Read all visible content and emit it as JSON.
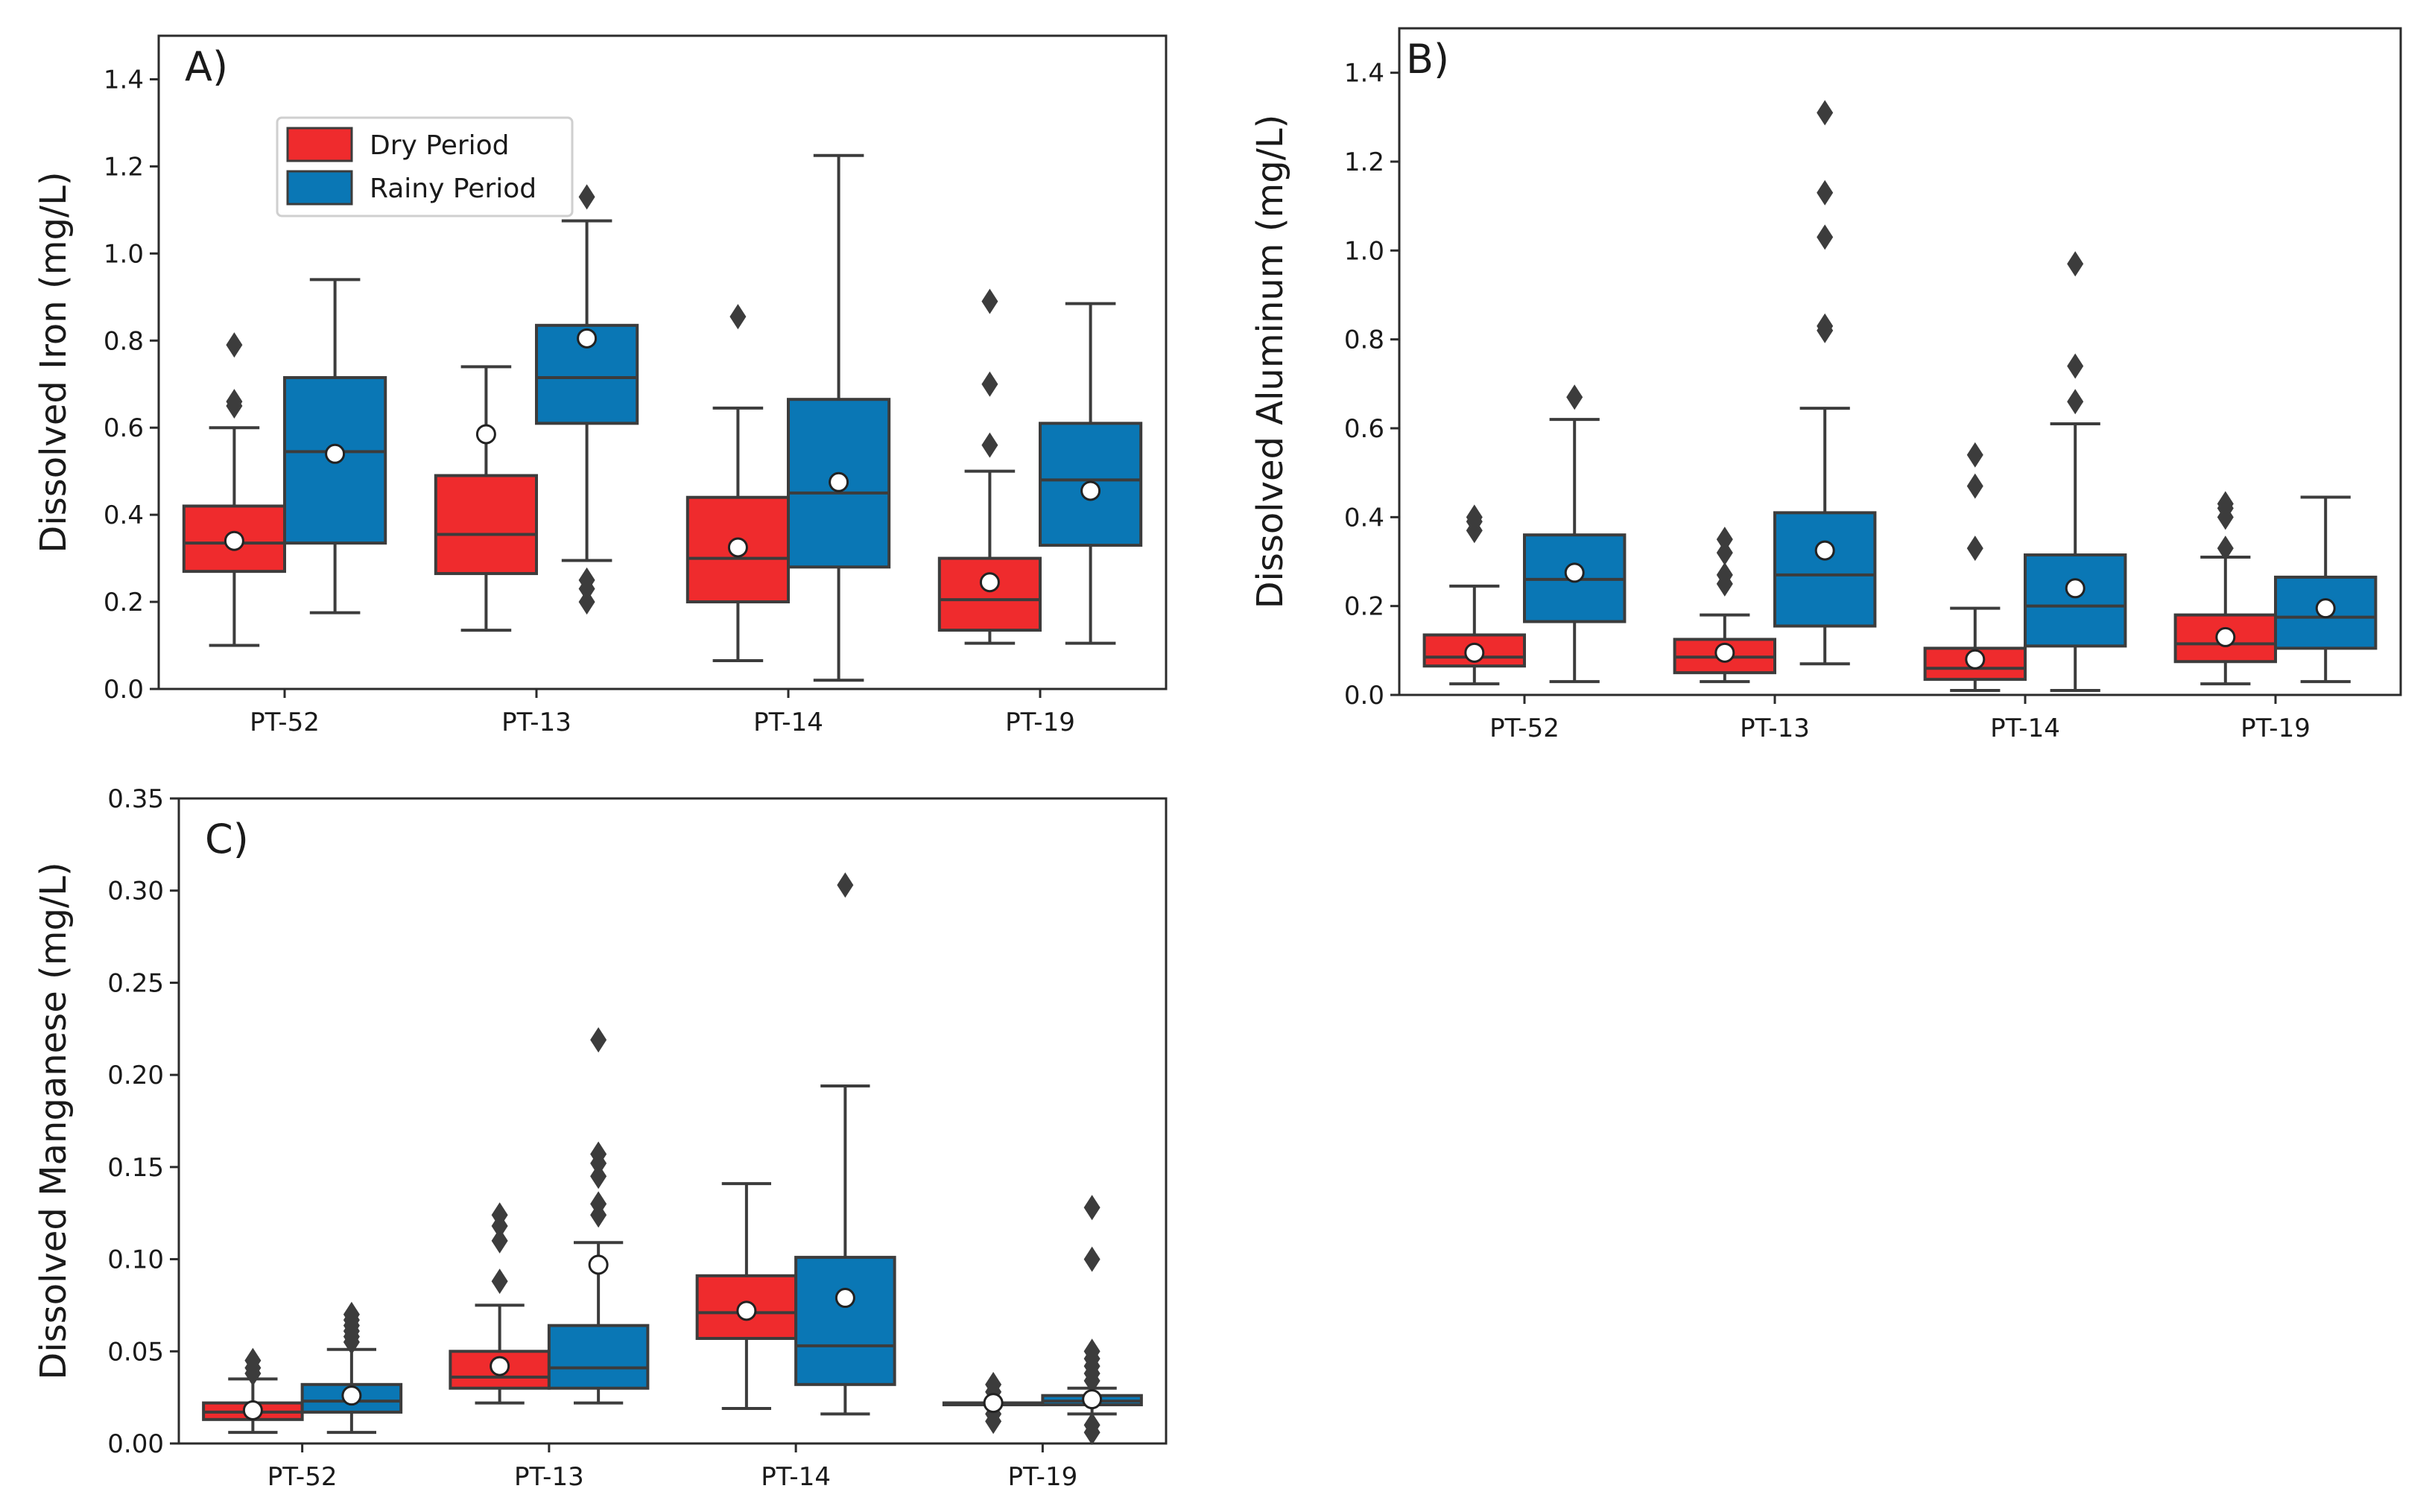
{
  "colors": {
    "dry": "#EF2B2D",
    "rainy": "#0A77B5",
    "lines": "#3c3c3c",
    "mean_marker": "#ffffff"
  },
  "legend": {
    "entries": [
      "Dry Period",
      "Rainy Period"
    ],
    "placement": "upper-left (panel A)"
  },
  "chart_data": [
    {
      "type": "box",
      "panel_label": "A)",
      "title": "",
      "xlabel": "",
      "ylabel": "Dissolved Iron (mg/L)",
      "ylim": [
        0.0,
        1.5
      ],
      "yticks": [
        0.0,
        0.2,
        0.4,
        0.6,
        0.8,
        1.0,
        1.2,
        1.4
      ],
      "ytick_labels": [
        "0.0",
        "0.2",
        "0.4",
        "0.6",
        "0.8",
        "1.0",
        "1.2",
        "1.4"
      ],
      "categories": [
        "PT-52",
        "PT-13",
        "PT-14",
        "PT-19"
      ],
      "series": [
        {
          "name": "Dry Period",
          "boxes": [
            {
              "whislo": 0.1,
              "q1": 0.27,
              "med": 0.335,
              "q3": 0.42,
              "whishi": 0.6,
              "mean": 0.34,
              "fliers": [
                0.65,
                0.66,
                0.79
              ]
            },
            {
              "whislo": 0.135,
              "q1": 0.265,
              "med": 0.355,
              "q3": 0.49,
              "whishi": 0.74,
              "mean": 0.585,
              "fliers": []
            },
            {
              "whislo": 0.065,
              "q1": 0.2,
              "med": 0.3,
              "q3": 0.44,
              "whishi": 0.645,
              "mean": 0.325,
              "fliers": [
                0.855
              ]
            },
            {
              "whislo": 0.105,
              "q1": 0.135,
              "med": 0.205,
              "q3": 0.3,
              "whishi": 0.5,
              "mean": 0.245,
              "fliers": [
                0.56,
                0.7,
                0.89
              ]
            }
          ]
        },
        {
          "name": "Rainy Period",
          "boxes": [
            {
              "whislo": 0.175,
              "q1": 0.335,
              "med": 0.545,
              "q3": 0.715,
              "whishi": 0.94,
              "mean": 0.54,
              "fliers": []
            },
            {
              "whislo": 0.295,
              "q1": 0.61,
              "med": 0.715,
              "q3": 0.835,
              "whishi": 1.075,
              "mean": 0.805,
              "fliers": [
                0.2,
                0.23,
                0.25,
                1.13
              ]
            },
            {
              "whislo": 0.02,
              "q1": 0.28,
              "med": 0.45,
              "q3": 0.665,
              "whishi": 1.225,
              "mean": 0.475,
              "fliers": []
            },
            {
              "whislo": 0.105,
              "q1": 0.33,
              "med": 0.48,
              "q3": 0.61,
              "whishi": 0.885,
              "mean": 0.455,
              "fliers": []
            }
          ]
        }
      ]
    },
    {
      "type": "box",
      "panel_label": "B)",
      "title": "",
      "xlabel": "",
      "ylabel": "Dissolved Aluminum (mg/L)",
      "ylim": [
        0.0,
        1.5
      ],
      "yticks": [
        0.0,
        0.2,
        0.4,
        0.6,
        0.8,
        1.0,
        1.2,
        1.4
      ],
      "ytick_labels": [
        "0.0",
        "0.2",
        "0.4",
        "0.6",
        "0.8",
        "1.0",
        "1.2",
        "1.4"
      ],
      "categories": [
        "PT-52",
        "PT-13",
        "PT-14",
        "PT-19"
      ],
      "series": [
        {
          "name": "Dry Period",
          "boxes": [
            {
              "whislo": 0.025,
              "q1": 0.065,
              "med": 0.085,
              "q3": 0.135,
              "whishi": 0.245,
              "mean": 0.095,
              "fliers": [
                0.37,
                0.39,
                0.4
              ]
            },
            {
              "whislo": 0.03,
              "q1": 0.05,
              "med": 0.085,
              "q3": 0.125,
              "whishi": 0.18,
              "mean": 0.095,
              "fliers": [
                0.25,
                0.27,
                0.32,
                0.35
              ]
            },
            {
              "whislo": 0.01,
              "q1": 0.035,
              "med": 0.06,
              "q3": 0.105,
              "whishi": 0.195,
              "mean": 0.08,
              "fliers": [
                0.33,
                0.47,
                0.54
              ]
            },
            {
              "whislo": 0.025,
              "q1": 0.075,
              "med": 0.115,
              "q3": 0.18,
              "whishi": 0.31,
              "mean": 0.13,
              "fliers": [
                0.33,
                0.4,
                0.42,
                0.43
              ]
            }
          ]
        },
        {
          "name": "Rainy Period",
          "boxes": [
            {
              "whislo": 0.03,
              "q1": 0.165,
              "med": 0.26,
              "q3": 0.36,
              "whishi": 0.62,
              "mean": 0.275,
              "fliers": [
                0.67
              ]
            },
            {
              "whislo": 0.07,
              "q1": 0.155,
              "med": 0.27,
              "q3": 0.41,
              "whishi": 0.645,
              "mean": 0.325,
              "fliers": [
                0.82,
                0.83,
                1.03,
                1.13,
                1.31
              ]
            },
            {
              "whislo": 0.01,
              "q1": 0.11,
              "med": 0.2,
              "q3": 0.315,
              "whishi": 0.61,
              "mean": 0.24,
              "fliers": [
                0.66,
                0.74,
                0.97
              ]
            },
            {
              "whislo": 0.03,
              "q1": 0.105,
              "med": 0.175,
              "q3": 0.265,
              "whishi": 0.445,
              "mean": 0.195,
              "fliers": []
            }
          ]
        }
      ]
    },
    {
      "type": "box",
      "panel_label": "C)",
      "title": "",
      "xlabel": "",
      "ylabel": "Dissolved Manganese (mg/L)",
      "ylim": [
        0.0,
        0.35
      ],
      "yticks": [
        0.0,
        0.05,
        0.1,
        0.15,
        0.2,
        0.25,
        0.3,
        0.35
      ],
      "ytick_labels": [
        "0.00",
        "0.05",
        "0.10",
        "0.15",
        "0.20",
        "0.25",
        "0.30",
        "0.35"
      ],
      "categories": [
        "PT-52",
        "PT-13",
        "PT-14",
        "PT-19"
      ],
      "series": [
        {
          "name": "Dry Period",
          "boxes": [
            {
              "whislo": 0.006,
              "q1": 0.013,
              "med": 0.017,
              "q3": 0.022,
              "whishi": 0.035,
              "mean": 0.018,
              "fliers": [
                0.038,
                0.041,
                0.045
              ]
            },
            {
              "whislo": 0.022,
              "q1": 0.03,
              "med": 0.036,
              "q3": 0.05,
              "whishi": 0.075,
              "mean": 0.042,
              "fliers": [
                0.088,
                0.11,
                0.118,
                0.124
              ]
            },
            {
              "whislo": 0.019,
              "q1": 0.057,
              "med": 0.071,
              "q3": 0.091,
              "whishi": 0.141,
              "mean": 0.072,
              "fliers": []
            },
            {
              "whislo": 0.021,
              "q1": 0.021,
              "med": 0.022,
              "q3": 0.022,
              "whishi": 0.022,
              "mean": 0.022,
              "fliers": [
                0.012,
                0.016,
                0.028,
                0.032
              ]
            }
          ]
        },
        {
          "name": "Rainy Period",
          "boxes": [
            {
              "whislo": 0.006,
              "q1": 0.017,
              "med": 0.023,
              "q3": 0.032,
              "whishi": 0.051,
              "mean": 0.026,
              "fliers": [
                0.055,
                0.058,
                0.061,
                0.064,
                0.067,
                0.07
              ]
            },
            {
              "whislo": 0.022,
              "q1": 0.03,
              "med": 0.041,
              "q3": 0.064,
              "whishi": 0.109,
              "mean": 0.097,
              "fliers": [
                0.124,
                0.13,
                0.145,
                0.152,
                0.157,
                0.219
              ]
            },
            {
              "whislo": 0.016,
              "q1": 0.032,
              "med": 0.053,
              "q3": 0.101,
              "whishi": 0.194,
              "mean": 0.079,
              "fliers": [
                0.303
              ]
            },
            {
              "whislo": 0.016,
              "q1": 0.021,
              "med": 0.023,
              "q3": 0.026,
              "whishi": 0.03,
              "mean": 0.024,
              "fliers": [
                0.006,
                0.01,
                0.034,
                0.038,
                0.042,
                0.046,
                0.05,
                0.1,
                0.128
              ]
            }
          ]
        }
      ]
    }
  ]
}
